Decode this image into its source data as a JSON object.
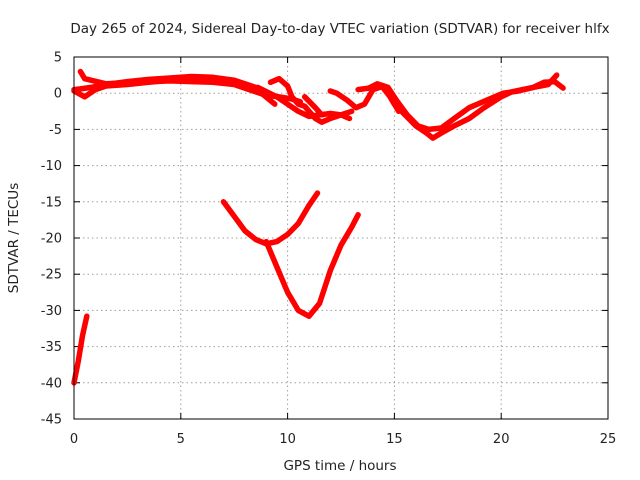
{
  "chart_data": {
    "type": "line",
    "title": "Day 265 of 2024, Sidereal Day-to-day VTEC variation (SDTVAR) for receiver hlfx",
    "xlabel": "GPS time / hours",
    "ylabel": "SDTVAR / TECUs",
    "xlim": [
      0,
      25
    ],
    "ylim": [
      -45,
      5
    ],
    "xticks": [
      0,
      5,
      10,
      15,
      20,
      25
    ],
    "xtick_labels": [
      "0",
      "5",
      "10",
      "15",
      "20",
      "25"
    ],
    "yticks": [
      -45,
      -40,
      -35,
      -30,
      -25,
      -20,
      -15,
      -10,
      -5,
      0,
      5
    ],
    "ytick_labels": [
      "-45",
      "-40",
      "-35",
      "-30",
      "-25",
      "-20",
      "-15",
      "-10",
      "-5",
      "0",
      "5"
    ],
    "grid": true,
    "series_color": "#ff0000",
    "series": [
      {
        "name": "trace-early-a",
        "x": [
          0.0,
          0.3,
          0.8,
          1.5,
          2.5,
          3.5,
          4.5,
          5.5,
          6.5,
          7.5,
          8.5,
          8.9,
          9.4
        ],
        "y": [
          0.5,
          0.6,
          0.8,
          1.2,
          1.6,
          1.9,
          2.1,
          2.3,
          2.2,
          1.8,
          0.8,
          -0.3,
          -1.5
        ]
      },
      {
        "name": "trace-early-b",
        "x": [
          0.3,
          0.5,
          1.5,
          3.0,
          4.5,
          5.5,
          6.5,
          7.5,
          8.2,
          9.0,
          9.6,
          10.2,
          10.6
        ],
        "y": [
          3.0,
          2.0,
          1.3,
          1.5,
          1.7,
          1.6,
          1.5,
          1.2,
          0.5,
          -0.3,
          -0.5,
          -0.8,
          -1.2
        ]
      },
      {
        "name": "trace-early-c",
        "x": [
          0.0,
          0.5,
          1.0,
          1.5,
          2.5,
          3.5,
          4.5,
          5.0
        ],
        "y": [
          0.3,
          -0.5,
          0.5,
          1.0,
          1.2,
          1.5,
          1.8,
          2.0
        ]
      },
      {
        "name": "trace-mid-a",
        "x": [
          8.6,
          9.5,
          10.0,
          10.5,
          11.0,
          11.5,
          12.0,
          12.5,
          12.9
        ],
        "y": [
          0.8,
          -0.5,
          -1.5,
          -2.5,
          -3.2,
          -3.0,
          -2.8,
          -3.0,
          -3.5
        ]
      },
      {
        "name": "trace-mid-b",
        "x": [
          9.2,
          9.6,
          10.0,
          10.2,
          10.5,
          10.8,
          11.0,
          11.3,
          11.6,
          12.0,
          12.5,
          13.0
        ],
        "y": [
          1.5,
          2.0,
          1.0,
          -0.5,
          -1.5,
          -1.8,
          -2.5,
          -3.5,
          -4.0,
          -3.5,
          -3.0,
          -2.5
        ]
      },
      {
        "name": "trace-mid-c",
        "x": [
          10.8,
          11.3,
          11.6
        ],
        "y": [
          -0.5,
          -2.0,
          -3.0
        ]
      },
      {
        "name": "trace-dip-a",
        "x": [
          12.0,
          12.3,
          12.8,
          13.2,
          13.6,
          14.0,
          14.5,
          15.0,
          15.5,
          16.0,
          16.5,
          16.8,
          17.2,
          17.8,
          18.5,
          19.2,
          20.0,
          20.5,
          21.0,
          21.5,
          22.0,
          22.5,
          22.9
        ],
        "y": [
          0.3,
          0.0,
          -1.0,
          -2.0,
          -1.5,
          0.5,
          1.0,
          -1.5,
          -3.0,
          -4.5,
          -5.5,
          -6.2,
          -5.5,
          -4.5,
          -3.5,
          -2.0,
          -0.5,
          0.2,
          0.5,
          0.8,
          1.5,
          1.6,
          0.7
        ]
      },
      {
        "name": "trace-dip-b",
        "x": [
          13.3,
          13.8,
          14.2,
          14.7,
          15.1,
          15.6,
          16.1,
          16.6,
          17.2,
          17.8,
          18.5,
          19.3,
          20.1,
          20.8,
          21.5,
          22.2,
          22.6
        ],
        "y": [
          0.5,
          0.7,
          1.3,
          0.8,
          -1.0,
          -3.0,
          -4.5,
          -5.0,
          -4.8,
          -3.5,
          -2.0,
          -1.0,
          0.0,
          0.3,
          0.8,
          1.2,
          2.5
        ]
      },
      {
        "name": "trace-dip-c",
        "x": [
          14.4,
          14.8,
          15.0,
          15.2
        ],
        "y": [
          1.0,
          -0.5,
          -1.5,
          -2.5
        ]
      },
      {
        "name": "trace-arc-small",
        "x": [
          7.0,
          7.5,
          8.0,
          8.5,
          9.0,
          9.5,
          10.0,
          10.5,
          11.0,
          11.4
        ],
        "y": [
          -15.0,
          -17.0,
          -19.0,
          -20.2,
          -20.8,
          -20.5,
          -19.5,
          -18.0,
          -15.5,
          -13.8
        ]
      },
      {
        "name": "trace-arc-large",
        "x": [
          9.0,
          9.5,
          10.0,
          10.5,
          11.0,
          11.5,
          12.0,
          12.5,
          13.0,
          13.3
        ],
        "y": [
          -20.5,
          -24.0,
          -27.5,
          -30.0,
          -30.8,
          -29.0,
          -24.5,
          -21.0,
          -18.5,
          -16.8
        ]
      },
      {
        "name": "trace-steep",
        "x": [
          0.0,
          0.2,
          0.4,
          0.6
        ],
        "y": [
          -40.0,
          -37.0,
          -33.5,
          -30.8
        ]
      }
    ]
  }
}
